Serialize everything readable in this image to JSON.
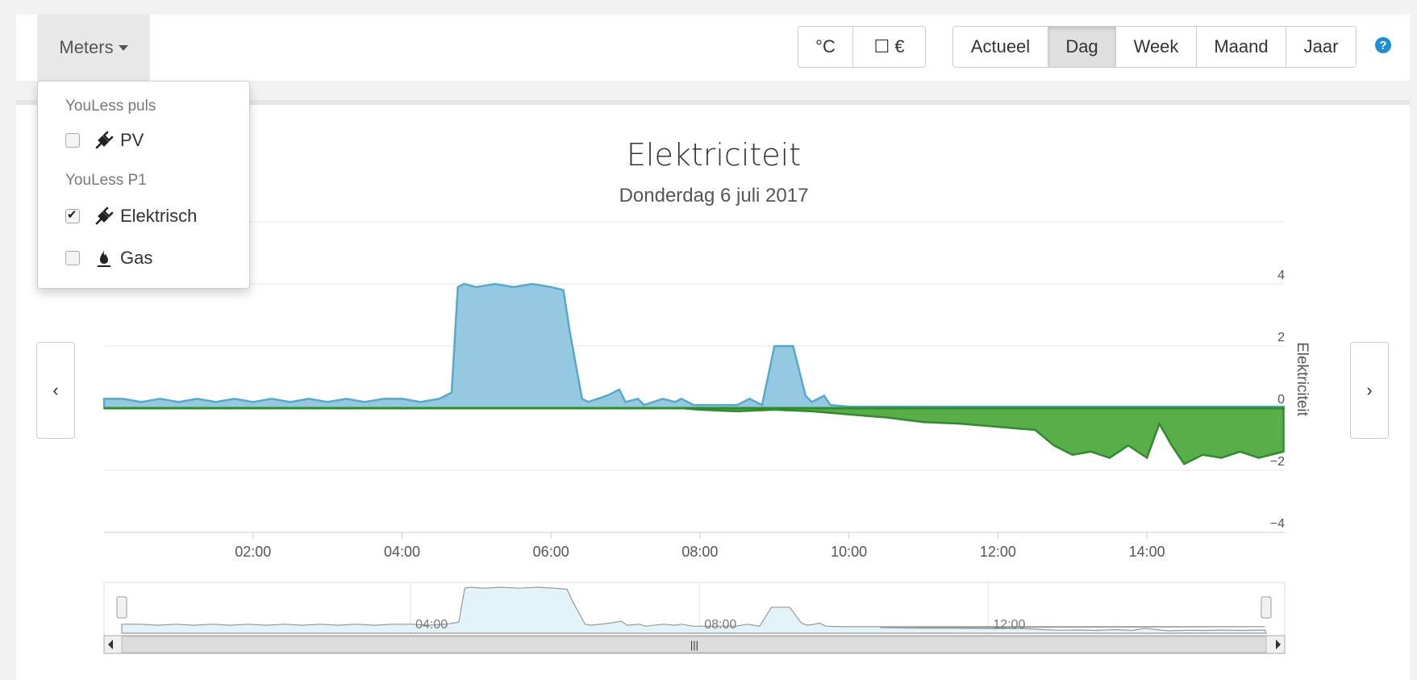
{
  "toolbar": {
    "meters_label": "Meters",
    "unit_buttons": [
      "°C",
      "☐ €"
    ],
    "period_buttons": [
      "Actueel",
      "Dag",
      "Week",
      "Maand",
      "Jaar"
    ],
    "active_period": "Dag",
    "help_label": "?"
  },
  "dropdown": {
    "groups": [
      {
        "header": "YouLess puls",
        "items": [
          {
            "label": "PV",
            "checked": false,
            "icon": "plug-icon"
          }
        ]
      },
      {
        "header": "YouLess P1",
        "items": [
          {
            "label": "Elektrisch",
            "checked": true,
            "icon": "plug-icon"
          },
          {
            "label": "Gas",
            "checked": false,
            "icon": "fire-icon"
          }
        ]
      }
    ]
  },
  "nav": {
    "prev": "‹",
    "next": "›"
  },
  "colors": {
    "consumption": "#8fc6e0",
    "consumption_line": "#5aa8c8",
    "production": "#5aae4a",
    "production_line": "#2e8b2e",
    "navigator": "#e3f3fa"
  },
  "chart_data": {
    "type": "area",
    "title": "Elektriciteit",
    "subtitle": "Donderdag 6 juli 2017",
    "ylabel": "Elektriciteit",
    "ylim": [
      -4,
      6
    ],
    "yticks": [
      -4,
      -2,
      0,
      2,
      4
    ],
    "ytick_labels": [
      "−4",
      "−2",
      "0",
      "2",
      "4"
    ],
    "xlim_hours": [
      0,
      15.85
    ],
    "xticks": [
      "02:00",
      "04:00",
      "06:00",
      "08:00",
      "10:00",
      "12:00",
      "14:00"
    ],
    "grid": true,
    "series": [
      {
        "x": [
          "00:00",
          "00:15",
          "00:30",
          "00:45",
          "01:00",
          "01:15",
          "01:30",
          "01:45",
          "02:00",
          "02:15",
          "02:30",
          "02:45",
          "03:00",
          "03:15",
          "03:30",
          "03:45",
          "04:00",
          "04:15",
          "04:30",
          "04:40",
          "04:45",
          "04:50",
          "05:00",
          "05:15",
          "05:30",
          "05:45",
          "06:00",
          "06:10",
          "06:15",
          "06:25",
          "06:30",
          "06:45",
          "06:55",
          "07:00",
          "07:10",
          "07:15",
          "07:30",
          "07:40",
          "07:45",
          "07:55",
          "08:00",
          "08:30",
          "08:40",
          "08:50",
          "09:00",
          "09:15",
          "09:25",
          "09:30",
          "09:40",
          "09:45",
          "10:00",
          "11:00",
          "12:00",
          "13:00",
          "14:00",
          "15:00",
          "15:50"
        ],
        "values": [
          0.3,
          0.3,
          0.2,
          0.3,
          0.2,
          0.3,
          0.2,
          0.3,
          0.2,
          0.3,
          0.2,
          0.3,
          0.2,
          0.3,
          0.2,
          0.3,
          0.3,
          0.2,
          0.3,
          0.5,
          3.9,
          4.0,
          3.9,
          4.0,
          3.9,
          4.0,
          3.9,
          3.8,
          2.5,
          0.3,
          0.2,
          0.4,
          0.6,
          0.2,
          0.3,
          0.1,
          0.3,
          0.2,
          0.3,
          0.1,
          0.1,
          0.1,
          0.3,
          0.1,
          2.0,
          2.0,
          0.4,
          0.2,
          0.4,
          0.1,
          0.05,
          0.05,
          0.05,
          0.05,
          0.05,
          0.05,
          0.05
        ]
      },
      {
        "x": [
          "00:00",
          "07:45",
          "08:00",
          "08:30",
          "09:00",
          "09:30",
          "10:00",
          "10:30",
          "11:00",
          "11:30",
          "12:00",
          "12:30",
          "12:45",
          "13:00",
          "13:15",
          "13:30",
          "13:45",
          "14:00",
          "14:10",
          "14:20",
          "14:30",
          "14:45",
          "15:00",
          "15:15",
          "15:30",
          "15:50"
        ],
        "values": [
          0,
          0,
          -0.05,
          -0.1,
          -0.05,
          -0.1,
          -0.2,
          -0.3,
          -0.45,
          -0.5,
          -0.6,
          -0.7,
          -1.2,
          -1.5,
          -1.4,
          -1.6,
          -1.2,
          -1.6,
          -0.5,
          -1.2,
          -1.8,
          -1.5,
          -1.6,
          -1.4,
          -1.6,
          -1.4
        ]
      }
    ],
    "navigator": {
      "xticks": [
        "04:00",
        "08:00",
        "12:00"
      ]
    }
  }
}
